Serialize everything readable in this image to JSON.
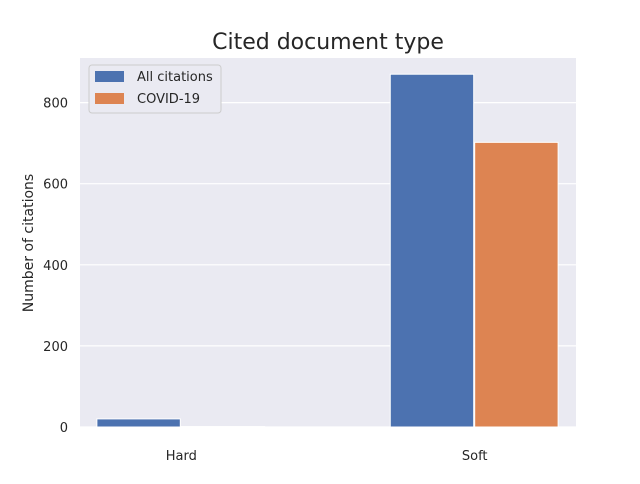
{
  "chart_data": {
    "type": "bar",
    "title": "Cited document type",
    "xlabel": "",
    "ylabel": "Number of citations",
    "categories": [
      "Hard",
      "Soft"
    ],
    "series": [
      {
        "name": "All citations",
        "values": [
          20,
          870
        ],
        "color": "#4c72b0"
      },
      {
        "name": "COVID-19",
        "values": [
          1,
          702
        ],
        "color": "#dd8452"
      }
    ],
    "ylim": [
      0,
      910
    ],
    "yticks": [
      0,
      200,
      400,
      600,
      800
    ],
    "grid": true,
    "legend_position": "top-left",
    "background_color": "#eaeaf2",
    "grid_color": "#ffffff"
  }
}
